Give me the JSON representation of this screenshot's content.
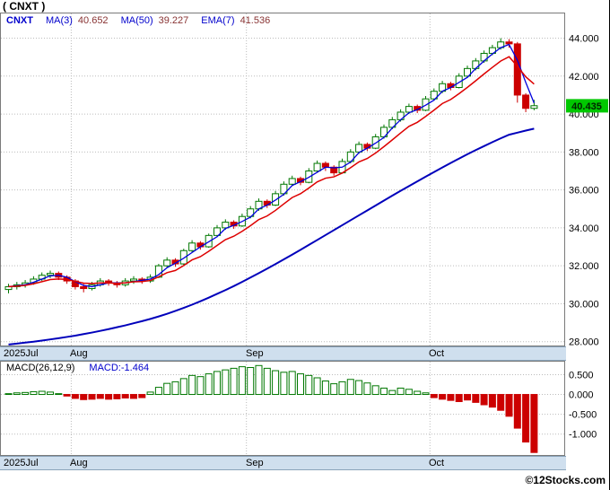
{
  "title": "( CNXT )",
  "watermark": "©12Stocks.com",
  "colors": {
    "up": "#007700",
    "down": "#cc0000",
    "ma_fast": "#0000dd",
    "ma_slow": "#0000bb",
    "ema": "#dd0000",
    "badge_bg": "#00c800",
    "badge_text": "#002200",
    "grid": "#bcbcbc",
    "panel_border": "#7a7a7a",
    "strip_bg": "#cfdfee"
  },
  "main_chart": {
    "legend": {
      "symbol": "CNXT",
      "items": [
        {
          "label": "MA(3)",
          "value": "40.652"
        },
        {
          "label": "MA(50)",
          "value": "39.227"
        },
        {
          "label": "EMA(7)",
          "value": "41.536"
        }
      ]
    },
    "price_badge": "40.435",
    "y_ticks": [
      {
        "label": "44.000",
        "value": 44
      },
      {
        "label": "42.000",
        "value": 42
      },
      {
        "label": "40.000",
        "value": 40
      },
      {
        "label": "38.000",
        "value": 38
      },
      {
        "label": "36.000",
        "value": 36
      },
      {
        "label": "34.000",
        "value": 34
      },
      {
        "label": "32.000",
        "value": 32
      },
      {
        "label": "30.000",
        "value": 30
      },
      {
        "label": "28.000",
        "value": 28
      }
    ]
  },
  "macd_panel": {
    "label": "MACD(26,12,9)",
    "value_label": "MACD:-1.464",
    "y_ticks": [
      {
        "label": "0.500",
        "value": 0.5
      },
      {
        "label": "0.000",
        "value": 0.0
      },
      {
        "label": "-0.500",
        "value": -0.5
      },
      {
        "label": "-1.000",
        "value": -1.0
      }
    ]
  },
  "chart_data": {
    "type": "candlestick",
    "symbol": "CNXT",
    "title": "( CNXT ) daily price with MA(3), MA(50), EMA(7) and MACD(26,12,9)",
    "x_unit": "trading-day",
    "ylim_main": [
      27.75,
      45.35
    ],
    "ylim_macd": [
      -1.55,
      0.85
    ],
    "last_close": 40.435,
    "ma3_last": 40.652,
    "ma50_last": 39.227,
    "ema7_last": 41.536,
    "macd_last": -1.464,
    "month_ticks": [
      {
        "label": "2025Jul",
        "bar": 0
      },
      {
        "label": "Aug",
        "bar": 8
      },
      {
        "label": "Sep",
        "bar": 29
      },
      {
        "label": "Oct",
        "bar": 51
      }
    ],
    "candles": [
      [
        30.75,
        31.05,
        30.55,
        30.9
      ],
      [
        30.9,
        31.15,
        30.75,
        31.0
      ],
      [
        31.0,
        31.25,
        30.85,
        31.1
      ],
      [
        31.1,
        31.45,
        31.0,
        31.3
      ],
      [
        31.3,
        31.65,
        31.2,
        31.5
      ],
      [
        31.5,
        31.75,
        31.35,
        31.6
      ],
      [
        31.6,
        31.7,
        31.25,
        31.4
      ],
      [
        31.4,
        31.5,
        31.05,
        31.2
      ],
      [
        31.2,
        31.3,
        30.75,
        30.9
      ],
      [
        30.9,
        31.05,
        30.6,
        30.8
      ],
      [
        30.8,
        31.15,
        30.7,
        31.0
      ],
      [
        31.0,
        31.35,
        30.9,
        31.2
      ],
      [
        31.2,
        31.3,
        30.95,
        31.1
      ],
      [
        31.1,
        31.2,
        30.85,
        31.0
      ],
      [
        31.0,
        31.35,
        30.9,
        31.2
      ],
      [
        31.2,
        31.45,
        31.05,
        31.3
      ],
      [
        31.3,
        31.4,
        31.05,
        31.2
      ],
      [
        31.2,
        31.55,
        31.1,
        31.4
      ],
      [
        31.4,
        32.1,
        31.35,
        32.0
      ],
      [
        32.0,
        32.45,
        31.9,
        32.3
      ],
      [
        32.3,
        32.4,
        31.95,
        32.1
      ],
      [
        32.1,
        32.9,
        32.05,
        32.8
      ],
      [
        32.8,
        33.35,
        32.7,
        33.2
      ],
      [
        33.2,
        33.3,
        32.85,
        33.0
      ],
      [
        33.0,
        33.7,
        32.95,
        33.6
      ],
      [
        33.6,
        34.15,
        33.5,
        34.0
      ],
      [
        34.0,
        34.45,
        33.9,
        34.3
      ],
      [
        34.3,
        34.4,
        33.95,
        34.1
      ],
      [
        34.1,
        34.75,
        34.05,
        34.6
      ],
      [
        34.6,
        35.15,
        34.5,
        35.0
      ],
      [
        35.0,
        35.55,
        34.9,
        35.4
      ],
      [
        35.4,
        35.5,
        35.05,
        35.2
      ],
      [
        35.2,
        35.95,
        35.15,
        35.8
      ],
      [
        35.8,
        36.45,
        35.7,
        36.3
      ],
      [
        36.3,
        36.75,
        36.2,
        36.6
      ],
      [
        36.6,
        36.7,
        36.25,
        36.4
      ],
      [
        36.4,
        37.15,
        36.35,
        37.0
      ],
      [
        37.0,
        37.55,
        36.9,
        37.4
      ],
      [
        37.4,
        37.5,
        37.0,
        37.2
      ],
      [
        37.2,
        37.3,
        36.75,
        36.9
      ],
      [
        36.9,
        37.65,
        36.85,
        37.5
      ],
      [
        37.5,
        38.15,
        37.4,
        38.0
      ],
      [
        38.0,
        38.55,
        37.9,
        38.4
      ],
      [
        38.4,
        38.5,
        38.05,
        38.2
      ],
      [
        38.2,
        38.95,
        38.15,
        38.8
      ],
      [
        38.8,
        39.45,
        38.7,
        39.3
      ],
      [
        39.3,
        39.85,
        39.2,
        39.7
      ],
      [
        39.7,
        40.25,
        39.6,
        40.1
      ],
      [
        40.1,
        40.55,
        40.0,
        40.4
      ],
      [
        40.4,
        40.5,
        40.05,
        40.2
      ],
      [
        40.2,
        40.95,
        40.15,
        40.8
      ],
      [
        40.8,
        41.35,
        40.7,
        41.2
      ],
      [
        41.2,
        41.75,
        41.1,
        41.6
      ],
      [
        41.6,
        41.7,
        41.25,
        41.4
      ],
      [
        41.4,
        42.15,
        41.35,
        42.0
      ],
      [
        42.0,
        42.55,
        41.9,
        42.4
      ],
      [
        42.4,
        42.95,
        42.3,
        42.8
      ],
      [
        42.8,
        43.35,
        42.7,
        43.2
      ],
      [
        43.2,
        43.65,
        43.1,
        43.5
      ],
      [
        43.5,
        44.0,
        43.4,
        43.8
      ],
      [
        43.8,
        43.95,
        43.5,
        43.7
      ],
      [
        43.7,
        43.8,
        40.6,
        41.0
      ],
      [
        41.0,
        41.1,
        40.1,
        40.3
      ],
      [
        40.3,
        40.75,
        40.2,
        40.44
      ]
    ],
    "ma50": [
      27.85,
      27.9,
      27.95,
      28.0,
      28.06,
      28.12,
      28.18,
      28.25,
      28.32,
      28.4,
      28.48,
      28.57,
      28.66,
      28.76,
      28.86,
      28.97,
      29.08,
      29.2,
      29.33,
      29.47,
      29.62,
      29.78,
      29.95,
      30.13,
      30.32,
      30.52,
      30.72,
      30.93,
      31.15,
      31.38,
      31.61,
      31.85,
      32.09,
      32.34,
      32.59,
      32.84,
      33.1,
      33.36,
      33.62,
      33.88,
      34.14,
      34.4,
      34.66,
      34.92,
      35.18,
      35.44,
      35.7,
      35.95,
      36.2,
      36.45,
      36.7,
      36.94,
      37.18,
      37.42,
      37.65,
      37.88,
      38.1,
      38.31,
      38.52,
      38.72,
      38.91,
      39.02,
      39.13,
      39.23
    ],
    "macd_hist": [
      0.02,
      0.04,
      0.05,
      0.07,
      0.08,
      0.06,
      0.02,
      -0.04,
      -0.1,
      -0.13,
      -0.12,
      -0.1,
      -0.12,
      -0.11,
      -0.09,
      -0.1,
      -0.08,
      0.06,
      0.18,
      0.28,
      0.32,
      0.4,
      0.48,
      0.45,
      0.52,
      0.58,
      0.62,
      0.66,
      0.7,
      0.68,
      0.73,
      0.66,
      0.6,
      0.56,
      0.58,
      0.52,
      0.48,
      0.42,
      0.34,
      0.27,
      0.32,
      0.38,
      0.35,
      0.29,
      0.22,
      0.16,
      0.1,
      0.16,
      0.13,
      0.08,
      0.04,
      -0.08,
      -0.12,
      -0.15,
      -0.18,
      -0.14,
      -0.2,
      -0.26,
      -0.32,
      -0.4,
      -0.55,
      -0.85,
      -1.2,
      -1.464
    ]
  }
}
